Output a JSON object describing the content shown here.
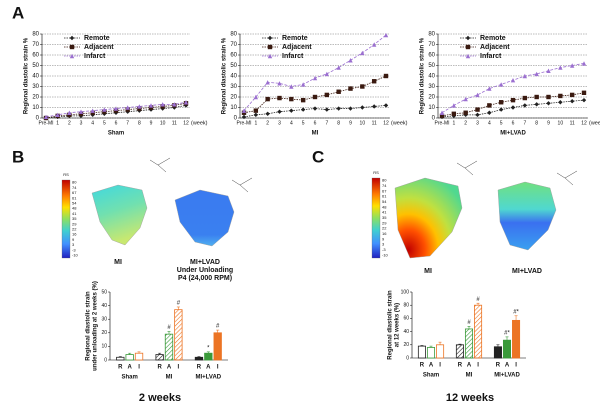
{
  "panel_labels": [
    "A",
    "B",
    "C"
  ],
  "colorbar": {
    "title": "RS",
    "labels": [
      80,
      74,
      67,
      61,
      54,
      48,
      41,
      35,
      29,
      22,
      16,
      9,
      3,
      -3,
      -10
    ]
  },
  "image_labels": {
    "b": [
      "MI",
      "MI+LVAD",
      "Under Unloading",
      "P4 (24,000 RPM)"
    ],
    "c": [
      "MI",
      "MI+LVAD"
    ]
  },
  "captions": [
    "2 weeks",
    "12 weeks"
  ],
  "chart_data": [
    {
      "type": "line",
      "title": "Sham",
      "y_label": "Regional diastolic strain %",
      "x_label": "(week)",
      "categories": [
        "Pre-MI",
        "1",
        "2",
        "3",
        "4",
        "5",
        "6",
        "7",
        "8",
        "9",
        "10",
        "11",
        "12"
      ],
      "ylim": [
        0,
        80
      ],
      "yticks": [
        0,
        10,
        20,
        30,
        40,
        50,
        60,
        70,
        80
      ],
      "grid": true,
      "legend": "upper-left",
      "series": [
        {
          "name": "Remote",
          "color": "#222222",
          "marker": "diamond",
          "values": [
            0,
            1,
            2,
            2,
            3,
            4,
            5,
            6,
            7,
            8,
            9,
            10,
            12
          ]
        },
        {
          "name": "Adjacent",
          "color": "#3a1a10",
          "marker": "square",
          "values": [
            0,
            2,
            3,
            4,
            5,
            6,
            7,
            8,
            9,
            10,
            11,
            12,
            14
          ]
        },
        {
          "name": "Infarct",
          "color": "#9b6fd0",
          "marker": "triangle",
          "values": [
            1,
            3,
            5,
            6,
            7,
            8,
            9,
            10,
            11,
            12,
            13,
            13,
            15
          ]
        }
      ]
    },
    {
      "type": "line",
      "title": "MI",
      "y_label": "Regional diastolic strain %",
      "x_label": "(week)",
      "categories": [
        "Pre-MI",
        "1",
        "2",
        "3",
        "4",
        "5",
        "6",
        "7",
        "8",
        "9",
        "10",
        "11",
        "12"
      ],
      "ylim": [
        0,
        80
      ],
      "yticks": [
        0,
        10,
        20,
        30,
        40,
        50,
        60,
        70,
        80
      ],
      "grid": true,
      "legend": "upper-left",
      "series": [
        {
          "name": "Remote",
          "color": "#222222",
          "marker": "diamond",
          "values": [
            1,
            3,
            4,
            6,
            7,
            8,
            9,
            8,
            9,
            9,
            10,
            11,
            12
          ]
        },
        {
          "name": "Adjacent",
          "color": "#3a1a10",
          "marker": "square",
          "values": [
            5,
            7,
            18,
            19,
            18,
            17,
            20,
            22,
            25,
            28,
            30,
            35,
            40
          ]
        },
        {
          "name": "Infarct",
          "color": "#9b6fd0",
          "marker": "triangle",
          "values": [
            7,
            20,
            34,
            33,
            30,
            32,
            38,
            42,
            48,
            55,
            62,
            70,
            79
          ]
        }
      ]
    },
    {
      "type": "line",
      "title": "MI+LVAD",
      "y_label": "Regional diastolic strain %",
      "x_label": "(week)",
      "categories": [
        "Pre-MI",
        "1",
        "2",
        "3",
        "4",
        "5",
        "6",
        "7",
        "8",
        "9",
        "10",
        "11",
        "12"
      ],
      "ylim": [
        0,
        80
      ],
      "yticks": [
        0,
        10,
        20,
        30,
        40,
        50,
        60,
        70,
        80
      ],
      "grid": true,
      "legend": "upper-left",
      "series": [
        {
          "name": "Remote",
          "color": "#222222",
          "marker": "diamond",
          "values": [
            1,
            2,
            3,
            3,
            5,
            8,
            10,
            12,
            13,
            14,
            15,
            16,
            17
          ]
        },
        {
          "name": "Adjacent",
          "color": "#3a1a10",
          "marker": "square",
          "values": [
            2,
            4,
            5,
            8,
            12,
            15,
            17,
            19,
            20,
            20,
            21,
            22,
            24
          ]
        },
        {
          "name": "Infarct",
          "color": "#9b6fd0",
          "marker": "triangle",
          "values": [
            5,
            12,
            18,
            22,
            28,
            32,
            36,
            40,
            42,
            45,
            48,
            50,
            52
          ]
        }
      ]
    },
    {
      "type": "bar",
      "y_label": [
        "Regional diastolic strain",
        "under unloading at 2 weeks (%)"
      ],
      "groups": [
        "Sham",
        "MI",
        "MI+LVAD"
      ],
      "group_styles": [
        "outline",
        "hatch",
        "solid"
      ],
      "colors": [
        "#222222",
        "#3a9a3a",
        "#ec7424"
      ],
      "categories": [
        "R",
        "A",
        "I",
        "R",
        "A",
        "I",
        "R",
        "A",
        "I"
      ],
      "values": [
        2,
        4,
        5,
        4,
        19,
        37,
        2,
        5,
        20
      ],
      "errors": [
        0.5,
        1,
        1,
        1,
        2,
        2,
        0.5,
        1,
        2
      ],
      "annotations": [
        null,
        null,
        null,
        null,
        "#",
        "#",
        null,
        "*",
        "#"
      ],
      "ylim": [
        0,
        50
      ],
      "yticks": [
        0,
        10,
        20,
        30,
        40,
        50
      ]
    },
    {
      "type": "bar",
      "y_label": [
        "Regional diastolic strain",
        "at 12 weeks (%)"
      ],
      "groups": [
        "Sham",
        "MI",
        "MI+LVAD"
      ],
      "group_styles": [
        "outline",
        "hatch",
        "solid"
      ],
      "colors": [
        "#222222",
        "#3a9a3a",
        "#ec7424"
      ],
      "categories": [
        "R",
        "A",
        "I",
        "R",
        "A",
        "I",
        "R",
        "A",
        "I"
      ],
      "values": [
        18,
        16,
        20,
        20,
        44,
        80,
        17,
        27,
        57
      ],
      "errors": [
        1,
        2,
        4,
        1,
        4,
        3,
        3,
        5,
        7
      ],
      "annotations": [
        null,
        null,
        null,
        null,
        "#",
        "#",
        null,
        "#*",
        "#*"
      ],
      "ylim": [
        0,
        100
      ],
      "yticks": [
        0,
        20,
        40,
        60,
        80,
        100
      ]
    }
  ]
}
